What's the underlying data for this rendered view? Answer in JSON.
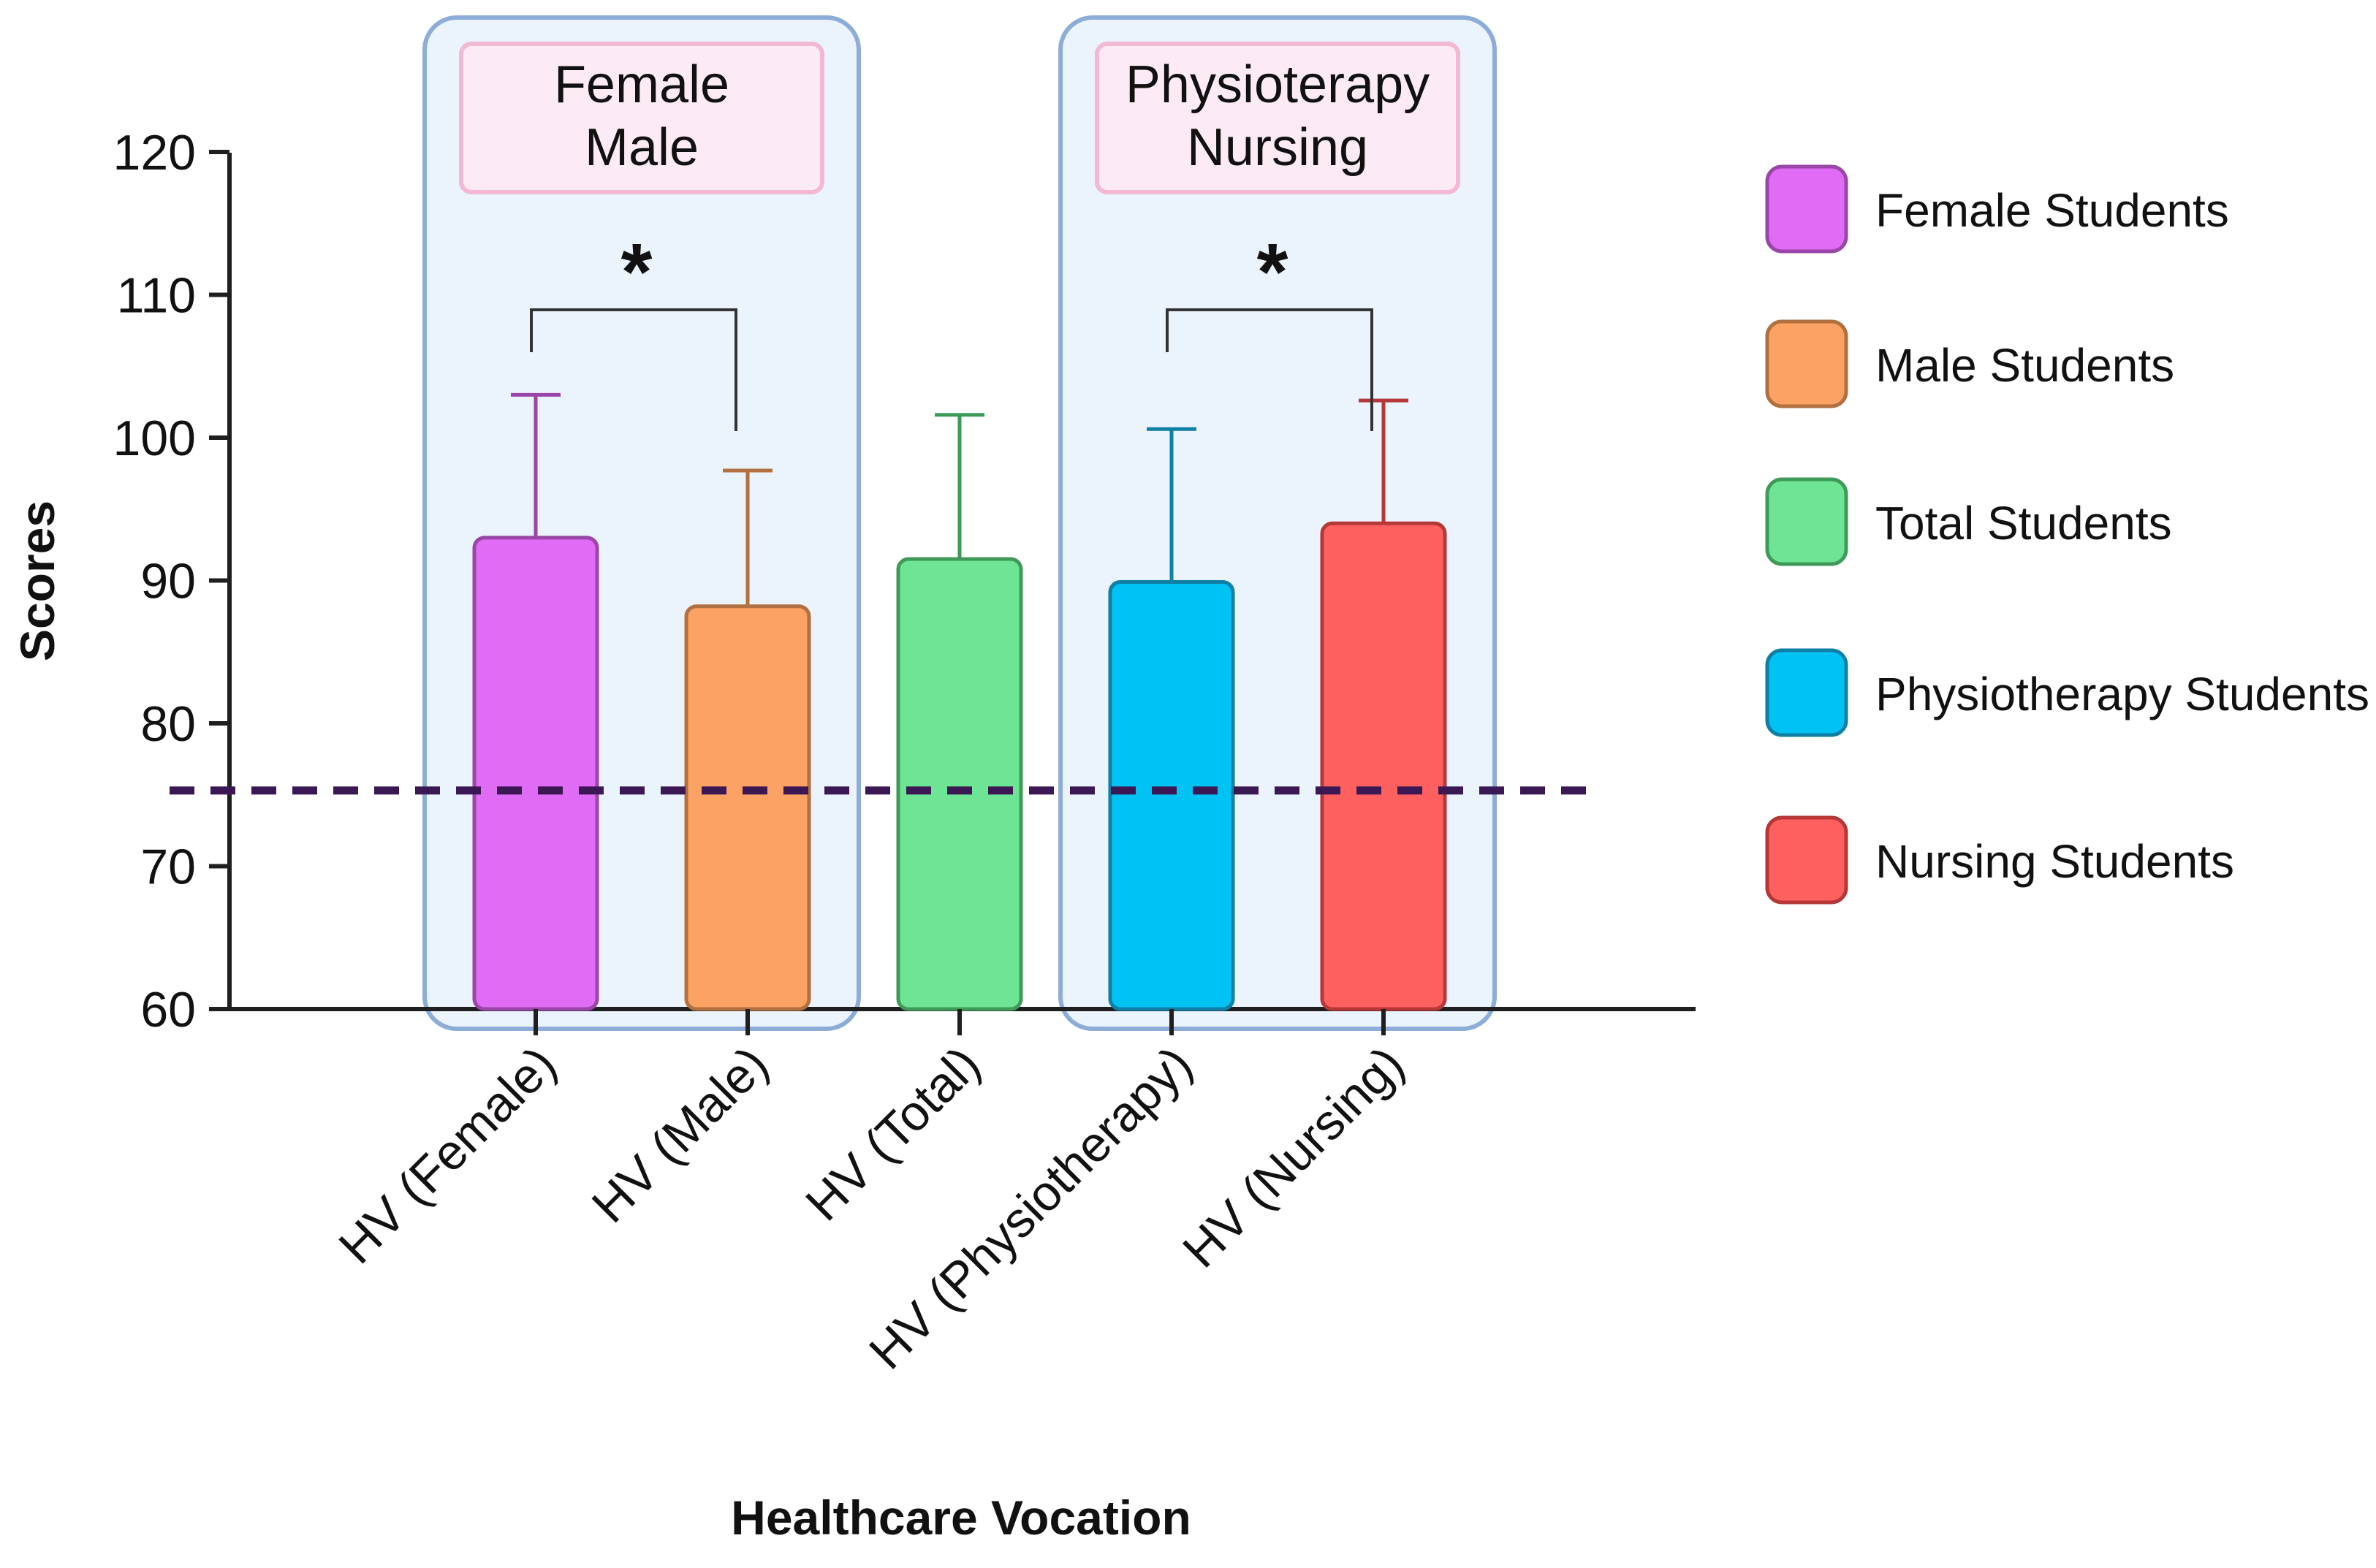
{
  "chart_data": {
    "type": "bar",
    "title": "",
    "xlabel": "Healthcare Vocation",
    "ylabel": "Scores",
    "ylim": [
      60,
      120
    ],
    "yticks": [
      "60",
      "70",
      "80",
      "90",
      "100",
      "110",
      "120"
    ],
    "categories": [
      "HV (Female)",
      "HV (Male)",
      "HV (Total)",
      "HV (Physiotherapy)",
      "HV (Nursing)"
    ],
    "values": [
      93,
      88.2,
      91.5,
      89.9,
      94
    ],
    "error_upper": [
      103,
      97.7,
      101.6,
      100.6,
      102.6
    ],
    "colors": [
      "#E06CF5",
      "#FCA264",
      "#6EE594",
      "#00C3F4",
      "#FE6060"
    ],
    "edge_colors": [
      "#9A45A8",
      "#B0703F",
      "#3F9A5A",
      "#0F7FA5",
      "#B53737"
    ],
    "reference_line": 75.3,
    "reference_color": "#3B1753",
    "legend_position": "right",
    "legend": [
      "Female Students",
      "Male Students",
      "Total Students",
      "Physiotherapy Students",
      "Nursing Students"
    ],
    "groups": [
      {
        "label_lines": [
          "Female",
          "Male"
        ],
        "members": [
          0,
          1
        ],
        "significance": "*"
      },
      {
        "label_lines": [
          "Physioterapy",
          "Nursing"
        ],
        "members": [
          3,
          4
        ],
        "significance": "*"
      }
    ]
  }
}
